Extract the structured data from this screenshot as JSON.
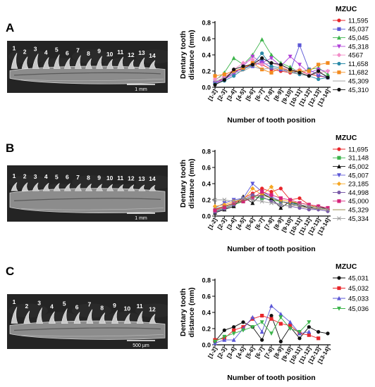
{
  "panels": [
    {
      "letter": "A",
      "tooth_numbers": [
        "1",
        "2",
        "3",
        "4",
        "5",
        "6",
        "7",
        "8",
        "9",
        "10",
        "11",
        "12",
        "13",
        "14"
      ],
      "scale_bar": "1 mm"
    },
    {
      "letter": "B",
      "tooth_numbers": [
        "1",
        "2",
        "3",
        "4",
        "5",
        "6",
        "7",
        "8",
        "9",
        "10",
        "11",
        "12",
        "13",
        "14"
      ],
      "scale_bar": "1 mm"
    },
    {
      "letter": "C",
      "tooth_numbers": [
        "1",
        "2",
        "3",
        "4",
        "5",
        "6",
        "7",
        "8",
        "9",
        "10",
        "11",
        "12"
      ],
      "scale_bar": "500 µm"
    }
  ],
  "chart_data": [
    {
      "type": "line",
      "xlabel": "Number of tooth position",
      "ylabel": "Dentary tooth distance (mm)",
      "categories": [
        "[1-2]",
        "[2-3]",
        "[3-4]",
        "[4-5]",
        "[5-6]",
        "[6-7]",
        "[7-8]",
        "[8-9]",
        "[9-10]",
        "[10-11]",
        "[11-12]",
        "[12-13]",
        "[13-14]"
      ],
      "ylim": [
        0,
        0.8
      ],
      "yticks": [
        "0.0",
        "0.2",
        "0.4",
        "0.6",
        "0.8"
      ],
      "legend_title": "MZUC",
      "legend_position": "right",
      "series": [
        {
          "name": "11,595",
          "color": "#e8262b",
          "marker": "circle",
          "values": [
            0.05,
            0.12,
            0.2,
            0.22,
            0.3,
            0.28,
            0.22,
            0.2,
            0.18,
            0.2,
            0.16,
            0.14,
            0.12
          ]
        },
        {
          "name": "45,037",
          "color": "#5b57d6",
          "marker": "square",
          "values": [
            0.06,
            0.1,
            0.18,
            0.24,
            0.26,
            0.32,
            0.24,
            0.22,
            0.2,
            0.52,
            0.22,
            0.15,
            0.12
          ]
        },
        {
          "name": "45,045",
          "color": "#3cb44b",
          "marker": "triangle",
          "values": [
            0.08,
            0.18,
            0.36,
            0.28,
            0.4,
            0.59,
            0.4,
            0.3,
            0.25,
            0.18,
            0.22,
            0.24,
            0.16
          ]
        },
        {
          "name": "45,318",
          "color": "#b040d8",
          "marker": "triangle-down",
          "values": [
            0.05,
            0.1,
            0.16,
            0.26,
            0.38,
            0.3,
            0.36,
            0.26,
            0.38,
            0.28,
            0.18,
            0.22,
            0.19
          ]
        },
        {
          "name": "4567",
          "color": "#f28cc8",
          "marker": "diamond",
          "values": [
            0.1,
            0.14,
            0.22,
            0.3,
            0.34,
            0.28,
            0.3,
            0.26,
            0.2,
            0.22,
            0.16,
            0.18,
            0.2
          ]
        },
        {
          "name": "11,658",
          "color": "#2a8aa8",
          "marker": "circle",
          "values": [
            0.04,
            0.08,
            0.14,
            0.22,
            0.28,
            0.42,
            0.26,
            0.24,
            0.2,
            0.16,
            0.14,
            0.1,
            0.12
          ]
        },
        {
          "name": "11,682",
          "color": "#f28a1e",
          "marker": "square",
          "values": [
            0.14,
            0.16,
            0.2,
            0.24,
            0.3,
            0.22,
            0.18,
            0.24,
            0.2,
            0.2,
            0.2,
            0.28,
            0.3
          ]
        },
        {
          "name": "45,309",
          "color": "#9a9a9a",
          "marker": "none",
          "values": [
            0.07,
            0.12,
            0.18,
            0.2,
            0.26,
            0.22,
            0.24,
            0.22,
            0.18,
            0.16,
            0.14,
            0.18,
            0.14
          ]
        },
        {
          "name": "45,310",
          "color": "#111111",
          "marker": "circle",
          "values": [
            0.03,
            0.09,
            0.22,
            0.26,
            0.28,
            0.36,
            0.3,
            0.28,
            0.22,
            0.18,
            0.14,
            0.2,
            0.12
          ]
        }
      ]
    },
    {
      "type": "line",
      "xlabel": "Number of tooth position",
      "ylabel": "Dentary tooth distance (mm)",
      "categories": [
        "[1-2]",
        "[2-3]",
        "[3-4]",
        "[4-5]",
        "[5-6]",
        "[6-7]",
        "[7-8]",
        "[8-9]",
        "[9-10]",
        "[10-11]",
        "[11-12]",
        "[12-13]",
        "[13-14]"
      ],
      "ylim": [
        0,
        0.8
      ],
      "yticks": [
        "0.0",
        "0.2",
        "0.4",
        "0.6",
        "0.8"
      ],
      "legend_title": "MZUC",
      "legend_position": "right",
      "series": [
        {
          "name": "11,695",
          "color": "#e8262b",
          "marker": "circle",
          "values": [
            0.08,
            0.12,
            0.16,
            0.22,
            0.28,
            0.34,
            0.3,
            0.34,
            0.2,
            0.22,
            0.14,
            0.12,
            0.1
          ]
        },
        {
          "name": "31,148",
          "color": "#3cb44b",
          "marker": "square",
          "values": [
            0.06,
            0.1,
            0.14,
            0.18,
            0.24,
            0.22,
            0.2,
            0.18,
            0.16,
            0.14,
            0.12,
            0.1,
            0.08
          ]
        },
        {
          "name": "45,002",
          "color": "#111111",
          "marker": "triangle",
          "values": [
            0.04,
            0.08,
            0.12,
            0.24,
            0.16,
            0.28,
            0.22,
            0.1,
            0.18,
            0.14,
            0.1,
            0.12,
            0.08
          ]
        },
        {
          "name": "45,007",
          "color": "#5b57d6",
          "marker": "triangle-down",
          "values": [
            0.1,
            0.16,
            0.2,
            0.22,
            0.4,
            0.3,
            0.24,
            0.18,
            0.16,
            0.12,
            0.1,
            0.08,
            0.06
          ]
        },
        {
          "name": "23,185",
          "color": "#f5a623",
          "marker": "diamond",
          "values": [
            0.12,
            0.14,
            0.18,
            0.2,
            0.34,
            0.26,
            0.36,
            0.2,
            0.18,
            0.16,
            0.14,
            0.1,
            0.08
          ]
        },
        {
          "name": "44,998",
          "color": "#7a5ba8",
          "marker": "circle",
          "values": [
            0.05,
            0.09,
            0.14,
            0.2,
            0.26,
            0.24,
            0.18,
            0.14,
            0.12,
            0.1,
            0.08,
            0.08,
            0.06
          ]
        },
        {
          "name": "45,000",
          "color": "#d6237a",
          "marker": "square",
          "values": [
            0.07,
            0.11,
            0.16,
            0.18,
            0.22,
            0.3,
            0.26,
            0.22,
            0.2,
            0.16,
            0.14,
            0.12,
            0.1
          ]
        },
        {
          "name": "45,329",
          "color": "#8b7d3a",
          "marker": "none",
          "values": [
            0.09,
            0.12,
            0.15,
            0.19,
            0.24,
            0.26,
            0.22,
            0.18,
            0.15,
            0.12,
            0.1,
            0.09,
            0.08
          ]
        },
        {
          "name": "45,334",
          "color": "#9a9a9a",
          "marker": "x",
          "values": [
            0.2,
            0.2,
            0.18,
            0.22,
            0.2,
            0.18,
            0.16,
            0.14,
            0.12,
            0.14,
            0.12,
            0.1,
            0.08
          ]
        }
      ]
    },
    {
      "type": "line",
      "xlabel": "Number of tooth position",
      "ylabel": "Dentary tooth distance (mm)",
      "categories": [
        "[1-2]",
        "[2-3]",
        "[3-4]",
        "[4-5]",
        "[5-6]",
        "[6-7]",
        "[7-8]",
        "[8-9]",
        "[9-10]",
        "[10-11]",
        "[11-12]",
        "[12-13]",
        "[13-14]"
      ],
      "ylim": [
        0,
        0.8
      ],
      "yticks": [
        "0.0",
        "0.2",
        "0.4",
        "0.6",
        "0.8"
      ],
      "legend_title": "MZUC",
      "legend_position": "right",
      "series": [
        {
          "name": "45,031",
          "color": "#111111",
          "marker": "circle",
          "values": [
            0.04,
            0.18,
            0.22,
            0.28,
            0.22,
            0.06,
            0.36,
            0.04,
            0.22,
            0.08,
            0.22,
            0.16,
            0.14
          ]
        },
        {
          "name": "45,032",
          "color": "#e8262b",
          "marker": "square",
          "values": [
            0.06,
            0.08,
            0.18,
            0.22,
            0.32,
            0.36,
            0.32,
            0.26,
            0.24,
            0.14,
            0.12,
            0.08,
            null
          ]
        },
        {
          "name": "45,033",
          "color": "#5b57d6",
          "marker": "triangle",
          "values": [
            0.02,
            0.06,
            0.06,
            0.2,
            0.34,
            0.16,
            0.48,
            0.38,
            0.28,
            0.14,
            0.16,
            null,
            null
          ]
        },
        {
          "name": "45,036",
          "color": "#3cb44b",
          "marker": "triangle-down",
          "values": [
            0.04,
            0.1,
            0.14,
            0.18,
            0.22,
            0.28,
            0.14,
            0.34,
            0.2,
            0.16,
            0.28,
            null,
            null
          ]
        }
      ]
    }
  ]
}
